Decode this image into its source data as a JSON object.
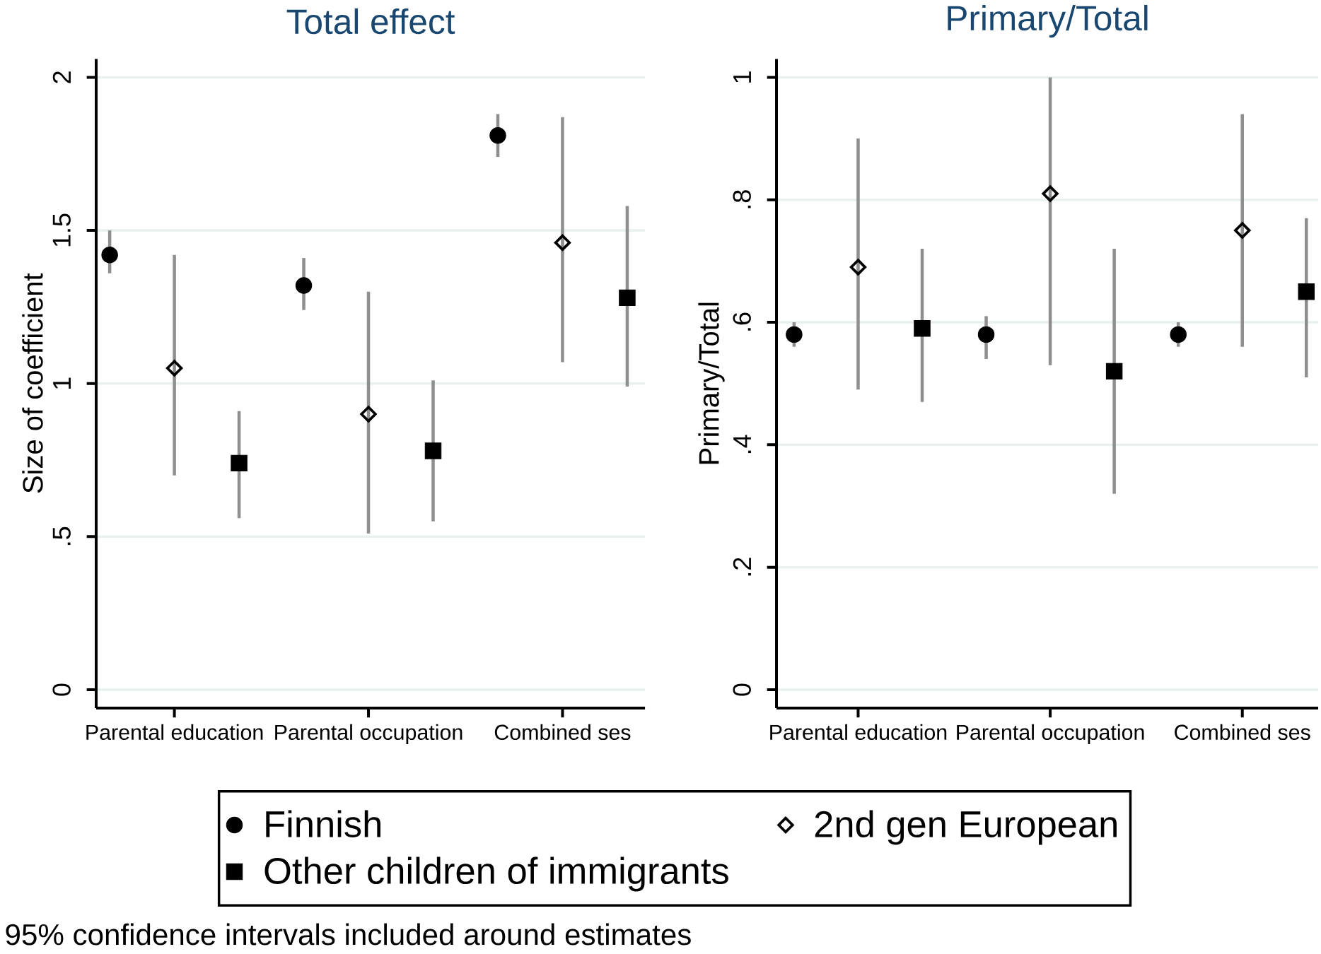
{
  "chart_data": [
    {
      "type": "scatter",
      "title": "Total effect",
      "ylabel": "Size of coefficient",
      "categories": [
        "Parental education",
        "Parental occupation",
        "Combined ses"
      ],
      "series": [
        {
          "name": "Finnish",
          "color": "#000000",
          "marker": "circle",
          "values": [
            1.42,
            1.32,
            1.81
          ],
          "errors": [
            [
              1.36,
              1.5
            ],
            [
              1.24,
              1.41
            ],
            [
              1.74,
              1.88
            ]
          ]
        },
        {
          "name": "2nd gen European",
          "color": "#000000",
          "marker": "diamond",
          "values": [
            1.05,
            0.9,
            1.46
          ],
          "errors": [
            [
              0.7,
              1.42
            ],
            [
              0.51,
              1.3
            ],
            [
              1.07,
              1.87
            ]
          ]
        },
        {
          "name": "Other children of immigrants",
          "color": "#000000",
          "marker": "square",
          "values": [
            0.74,
            0.78,
            1.28
          ],
          "errors": [
            [
              0.56,
              0.91
            ],
            [
              0.55,
              1.01
            ],
            [
              0.99,
              1.58
            ]
          ]
        }
      ],
      "ylim": [
        -0.06,
        2.06
      ],
      "yticks": [
        0,
        {
          "value": 0.5,
          "label": ".5"
        },
        1,
        1.5,
        2
      ],
      "grid": "y",
      "legend": "bottom",
      "annotations": [
        "95% confidence intervals included around estimates"
      ]
    },
    {
      "type": "scatter",
      "title": "Primary/Total",
      "ylabel": "Primary/Total",
      "categories": [
        "Parental education",
        "Parental occupation",
        "Combined ses"
      ],
      "series": [
        {
          "color": "#000000",
          "marker": "circle",
          "values": [
            0.58,
            0.58,
            0.58
          ],
          "errors": [
            [
              0.56,
              0.6
            ],
            [
              0.54,
              0.61
            ],
            [
              0.56,
              0.6
            ]
          ]
        },
        {
          "color": "#000000",
          "marker": "diamond",
          "values": [
            0.69,
            0.81,
            0.75
          ],
          "errors": [
            [
              0.49,
              0.9
            ],
            [
              0.53,
              1.0
            ],
            [
              0.56,
              0.94
            ]
          ]
        },
        {
          "color": "#000000",
          "marker": "square",
          "values": [
            0.59,
            0.52,
            0.65
          ],
          "errors": [
            [
              0.47,
              0.72
            ],
            [
              0.32,
              0.72
            ],
            [
              0.51,
              0.77
            ]
          ]
        }
      ],
      "ylim": [
        -0.03,
        1.03
      ],
      "yticks": [
        0,
        {
          "value": 0.2,
          "label": ".2"
        },
        {
          "value": 0.4,
          "label": ".4"
        },
        {
          "value": 0.6,
          "label": ".6"
        },
        {
          "value": 0.8,
          "label": ".8"
        },
        1
      ],
      "grid": "y"
    }
  ]
}
